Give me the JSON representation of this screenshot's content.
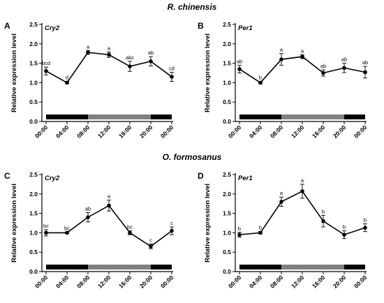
{
  "section_titles": [
    "R. chinensis",
    "O. formosanus"
  ],
  "chart_data": [
    {
      "type": "line",
      "panel": "A",
      "gene": "Cry2",
      "ylabel": "Relative expression level",
      "ylim": [
        0,
        2.5
      ],
      "yticks": [
        "0.0",
        "0.5",
        "1.0",
        "1.5",
        "2.0",
        "2.5"
      ],
      "categories": [
        "00:00",
        "04:00",
        "08:00",
        "12:00",
        "16:00",
        "20:00",
        "00:00"
      ],
      "values": [
        1.3,
        1.0,
        1.78,
        1.72,
        1.42,
        1.55,
        1.15
      ],
      "errors": [
        0.1,
        0.03,
        0.05,
        0.07,
        0.13,
        0.12,
        0.12
      ],
      "significance": [
        "bcd",
        "d",
        "a",
        "a",
        "abc",
        "ab",
        "cd"
      ]
    },
    {
      "type": "line",
      "panel": "B",
      "gene": "Per1",
      "ylabel": "Relative expression level",
      "ylim": [
        0,
        2.5
      ],
      "yticks": [
        "0.0",
        "0.5",
        "1.0",
        "1.5",
        "2.0",
        "2.5"
      ],
      "categories": [
        "00:00",
        "04:00",
        "08:00",
        "12:00",
        "16:00",
        "20:00",
        "00:00"
      ],
      "values": [
        1.35,
        1.0,
        1.6,
        1.67,
        1.25,
        1.38,
        1.27
      ],
      "errors": [
        0.1,
        0.03,
        0.15,
        0.05,
        0.08,
        0.12,
        0.15
      ],
      "significance": [
        "ab",
        "b",
        "a",
        "a",
        "ab",
        "ab",
        "ab"
      ]
    },
    {
      "type": "line",
      "panel": "C",
      "gene": "Cry2",
      "ylabel": "Relative expression level",
      "ylim": [
        0,
        2.5
      ],
      "yticks": [
        "0.0",
        "0.5",
        "1.0",
        "1.5",
        "2.0",
        "2.5"
      ],
      "categories": [
        "00:00",
        "04:00",
        "08:00",
        "12:00",
        "16:00",
        "20:00",
        "00:00"
      ],
      "values": [
        1.0,
        1.0,
        1.4,
        1.7,
        1.0,
        0.65,
        1.05
      ],
      "errors": [
        0.08,
        0.02,
        0.12,
        0.14,
        0.05,
        0.06,
        0.1
      ],
      "significance": [
        "bc",
        "bc",
        "ab",
        "a",
        "bc",
        "c",
        "c"
      ]
    },
    {
      "type": "line",
      "panel": "D",
      "gene": "Per1",
      "ylabel": "Relative expression level",
      "ylim": [
        0,
        2.5
      ],
      "yticks": [
        "0.0",
        "0.5",
        "1.0",
        "1.5",
        "2.0",
        "2.5"
      ],
      "categories": [
        "00:00",
        "04:00",
        "08:00",
        "12:00",
        "16:00",
        "20:00",
        "00:00"
      ],
      "values": [
        0.95,
        1.0,
        1.8,
        2.07,
        1.3,
        0.95,
        1.13
      ],
      "errors": [
        0.06,
        0.03,
        0.12,
        0.18,
        0.15,
        0.1,
        0.1
      ],
      "significance": [
        "b",
        "b",
        "a",
        "a",
        "b",
        "b",
        "b"
      ]
    }
  ],
  "photoperiod_bar": [
    {
      "phase": "dark",
      "from_hour": 0,
      "to_hour": 8,
      "color": "#000000"
    },
    {
      "phase": "light",
      "from_hour": 8,
      "to_hour": 20,
      "color": "#808080"
    },
    {
      "phase": "dark",
      "from_hour": 20,
      "to_hour": 24,
      "color": "#000000"
    }
  ]
}
